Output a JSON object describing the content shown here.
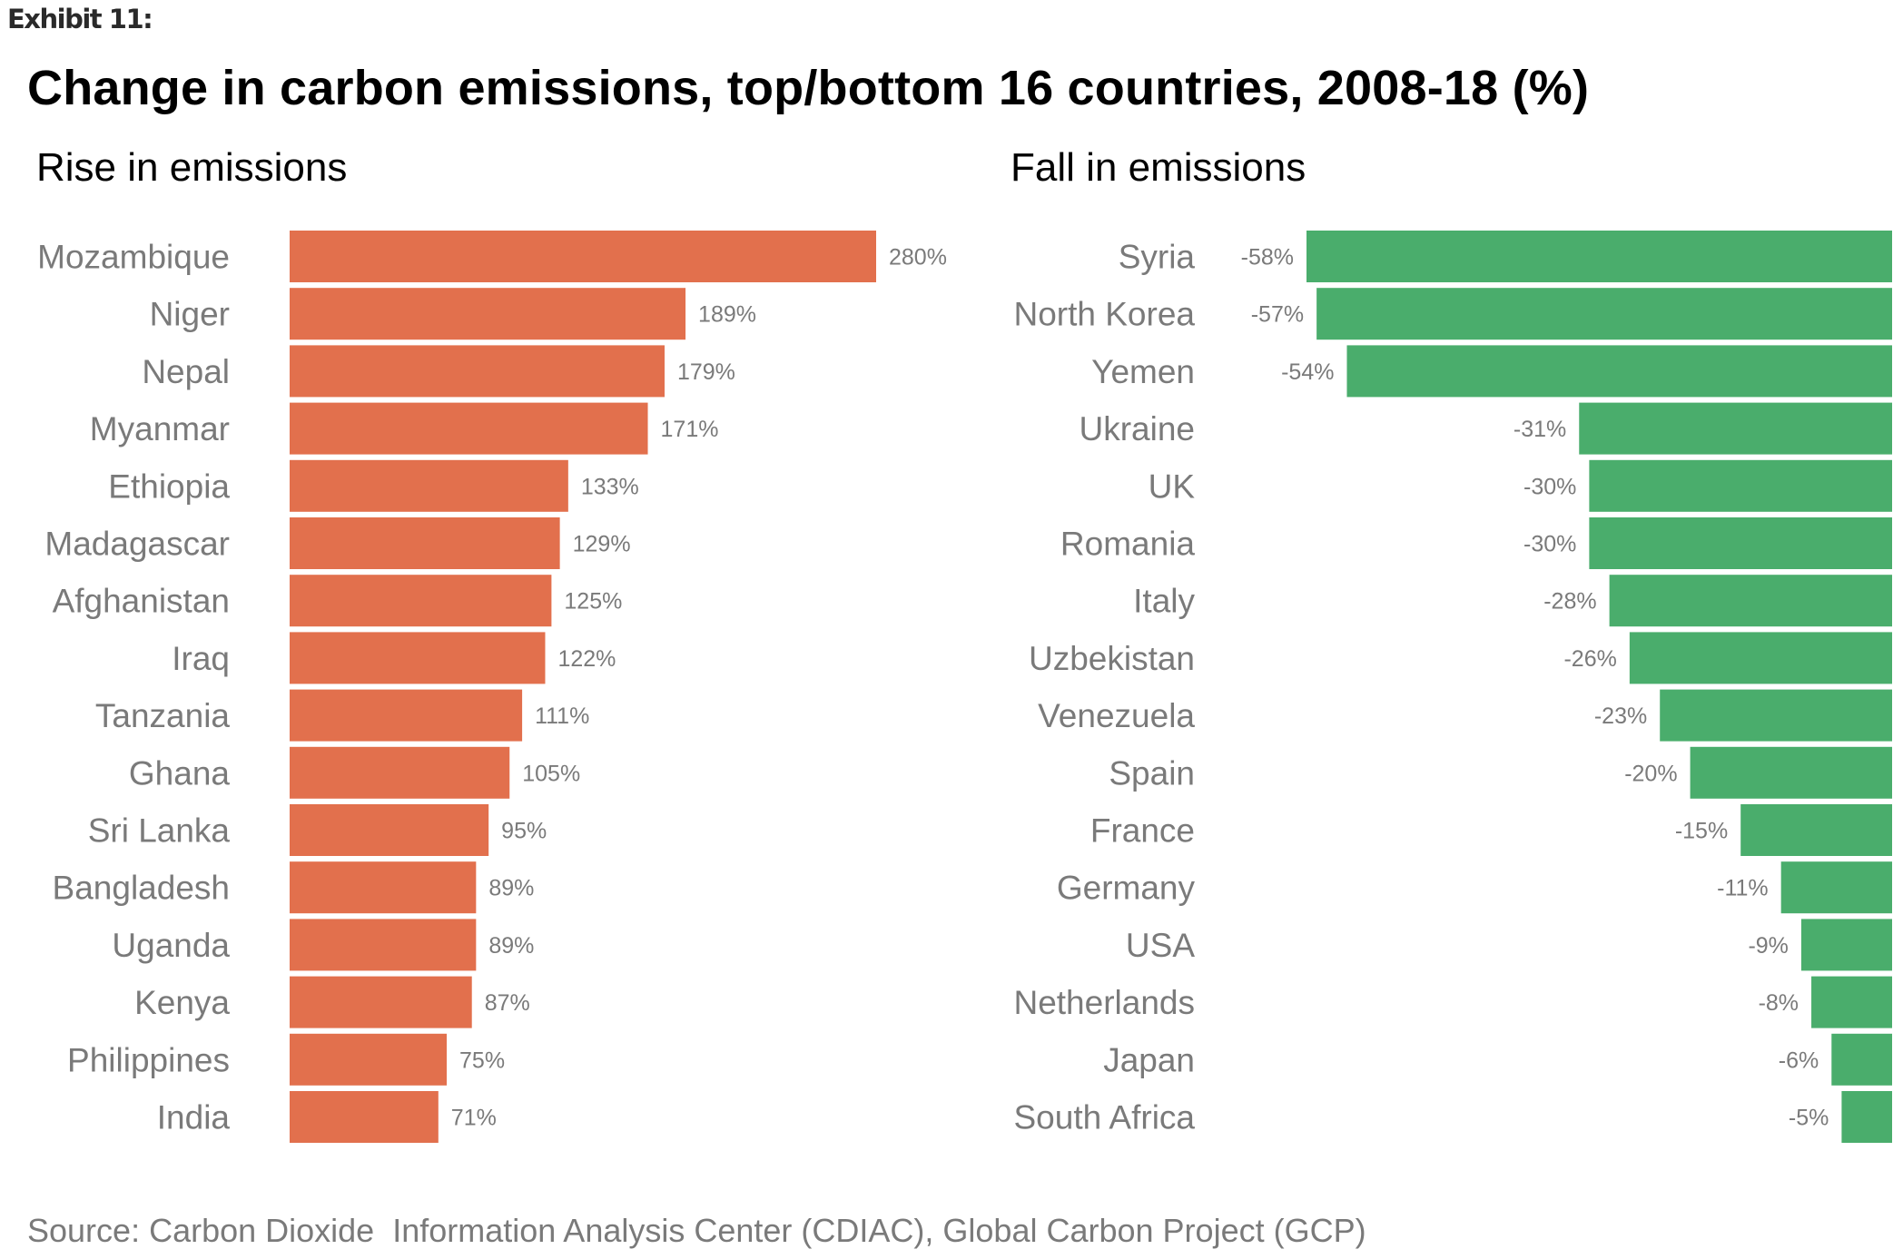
{
  "exhibit_label": "Exhibit 11:",
  "title": "Change in carbon emissions, top/bottom 16 countries, 2008-18 (%)",
  "source": "Source: Carbon Dioxide  Information Analysis Center (CDIAC), Global Carbon Project (GCP)",
  "colors": {
    "rise": "#E2704D",
    "fall": "#4AAD6C"
  },
  "chart_data": [
    {
      "type": "bar",
      "orientation": "horizontal",
      "title": "Rise in emissions",
      "xlabel": "",
      "ylabel": "",
      "grid": false,
      "categories": [
        "Mozambique",
        "Niger",
        "Nepal",
        "Myanmar",
        "Ethiopia",
        "Madagascar",
        "Afghanistan",
        "Iraq",
        "Tanzania",
        "Ghana",
        "Sri Lanka",
        "Bangladesh",
        "Uganda",
        "Kenya",
        "Philippines",
        "India"
      ],
      "values": [
        280,
        189,
        179,
        171,
        133,
        129,
        125,
        122,
        111,
        105,
        95,
        89,
        89,
        87,
        75,
        71
      ],
      "labels": [
        "280%",
        "189%",
        "179%",
        "171%",
        "133%",
        "129%",
        "125%",
        "122%",
        "111%",
        "105%",
        "95%",
        "89%",
        "89%",
        "87%",
        "75%",
        "71%"
      ],
      "xlim": [
        0,
        280
      ]
    },
    {
      "type": "bar",
      "orientation": "horizontal",
      "title": "Fall in emissions",
      "xlabel": "",
      "ylabel": "",
      "grid": false,
      "categories": [
        "Syria",
        "North Korea",
        "Yemen",
        "Ukraine",
        "UK",
        "Romania",
        "Italy",
        "Uzbekistan",
        "Venezuela",
        "Spain",
        "France",
        "Germany",
        "USA",
        "Netherlands",
        "Japan",
        "South Africa"
      ],
      "values": [
        -58,
        -57,
        -54,
        -31,
        -30,
        -30,
        -28,
        -26,
        -23,
        -20,
        -15,
        -11,
        -9,
        -8,
        -6,
        -5
      ],
      "labels": [
        "-58%",
        "-57%",
        "-54%",
        "-31%",
        "-30%",
        "-30%",
        "-28%",
        "-26%",
        "-23%",
        "-20%",
        "-15%",
        "-11%",
        "-9%",
        "-8%",
        "-6%",
        "-5%"
      ],
      "xlim": [
        -58,
        0
      ]
    }
  ]
}
